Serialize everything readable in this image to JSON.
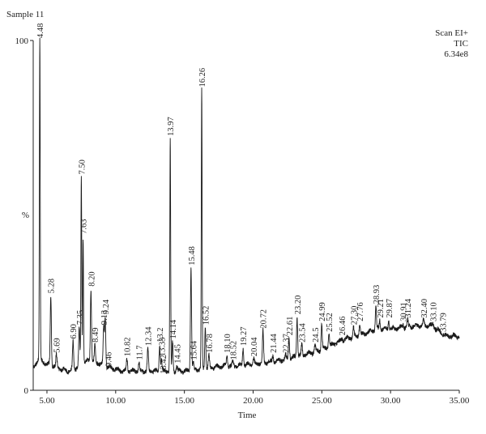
{
  "chart_data": {
    "type": "line",
    "sample_label": "Sample 11",
    "header_lines": [
      "Scan EI+",
      "TIC",
      "6.34e8"
    ],
    "xlabel": "Time",
    "ylabel": "%",
    "xlim": [
      4,
      35
    ],
    "ylim": [
      0,
      100
    ],
    "x_ticks": [
      5,
      10,
      15,
      20,
      25,
      30,
      35
    ],
    "x_tick_labels": [
      "5.00",
      "10.00",
      "15.00",
      "20.00",
      "25.00",
      "30.00",
      "35.00"
    ],
    "y_tick_labels": [
      {
        "value": 0,
        "label": "0"
      },
      {
        "value": 100,
        "label": "100"
      }
    ],
    "ylabel_at": 50,
    "baseline": [
      [
        4.0,
        6
      ],
      [
        4.15,
        7
      ],
      [
        4.25,
        8
      ],
      [
        4.35,
        9
      ],
      [
        4.7,
        8
      ],
      [
        5.0,
        7.5
      ],
      [
        5.5,
        7
      ],
      [
        5.8,
        6.5
      ],
      [
        6.0,
        6
      ],
      [
        6.5,
        5.5
      ],
      [
        7.0,
        6
      ],
      [
        7.5,
        7.5
      ],
      [
        8.0,
        8.5
      ],
      [
        8.5,
        8
      ],
      [
        9.0,
        7.5
      ],
      [
        9.5,
        6.5
      ],
      [
        10.0,
        6
      ],
      [
        10.5,
        5.5
      ],
      [
        11.0,
        5.5
      ],
      [
        12.0,
        5.5
      ],
      [
        13.0,
        5.5
      ],
      [
        14.0,
        5.5
      ],
      [
        15.0,
        5.5
      ],
      [
        16.0,
        6
      ],
      [
        17.0,
        6.5
      ],
      [
        18.0,
        7
      ],
      [
        19.0,
        7
      ],
      [
        20.0,
        7.5
      ],
      [
        21.0,
        8
      ],
      [
        22.0,
        8.5
      ],
      [
        23.0,
        9.5
      ],
      [
        24.0,
        10.5
      ],
      [
        25.0,
        11.5
      ],
      [
        26.0,
        13.5
      ],
      [
        27.0,
        15
      ],
      [
        28.0,
        16
      ],
      [
        29.0,
        17.5
      ],
      [
        30.0,
        17.5
      ],
      [
        31.0,
        18
      ],
      [
        32.0,
        18.5
      ],
      [
        33.0,
        18.5
      ],
      [
        34.0,
        15.5
      ],
      [
        35.0,
        15.5
      ]
    ],
    "peaks": [
      {
        "rt": 4.48,
        "label": "4.48",
        "y": 100
      },
      {
        "rt": 5.28,
        "label": "5.28",
        "y": 27
      },
      {
        "rt": 5.69,
        "label": "5.69",
        "y": 10
      },
      {
        "rt": 6.9,
        "label": "6.90",
        "y": 14
      },
      {
        "rt": 7.35,
        "label": "7.35",
        "y": 18
      },
      {
        "rt": 7.5,
        "label": "7.50",
        "y": 61
      },
      {
        "rt": 7.63,
        "label": "7.63",
        "y": 44
      },
      {
        "rt": 8.2,
        "label": "8.20",
        "y": 29
      },
      {
        "rt": 8.49,
        "label": "8.49",
        "y": 13
      },
      {
        "rt": 9.13,
        "label": "9.13",
        "y": 18
      },
      {
        "rt": 9.24,
        "label": "9.24",
        "y": 21
      },
      {
        "rt": 9.46,
        "label": "9.46",
        "y": 6
      },
      {
        "rt": 10.82,
        "label": "10.82",
        "y": 9
      },
      {
        "rt": 11.7,
        "label": "11.7",
        "y": 8
      },
      {
        "rt": 12.34,
        "label": "12.34",
        "y": 12
      },
      {
        "rt": 13.2,
        "label": "13.2",
        "y": 13
      },
      {
        "rt": 13.33,
        "label": "13.33",
        "y": 9
      },
      {
        "rt": 13.42,
        "label": "13.42",
        "y": 4
      },
      {
        "rt": 13.97,
        "label": "13.97",
        "y": 72
      },
      {
        "rt": 14.14,
        "label": "14.14",
        "y": 14
      },
      {
        "rt": 14.45,
        "label": "14.45",
        "y": 7
      },
      {
        "rt": 15.48,
        "label": "15.48",
        "y": 35
      },
      {
        "rt": 15.64,
        "label": "15.64",
        "y": 8
      },
      {
        "rt": 16.26,
        "label": "16.26",
        "y": 86
      },
      {
        "rt": 16.52,
        "label": "16.52",
        "y": 18
      },
      {
        "rt": 16.78,
        "label": "16.78",
        "y": 10
      },
      {
        "rt": 18.1,
        "label": "18.10",
        "y": 10
      },
      {
        "rt": 18.52,
        "label": "18.52",
        "y": 8
      },
      {
        "rt": 19.27,
        "label": "19.27",
        "y": 12
      },
      {
        "rt": 20.04,
        "label": "20.04",
        "y": 9
      },
      {
        "rt": 20.72,
        "label": "20.72",
        "y": 17
      },
      {
        "rt": 21.44,
        "label": "21.44",
        "y": 10
      },
      {
        "rt": 22.37,
        "label": "22.37",
        "y": 10
      },
      {
        "rt": 22.61,
        "label": "22.61",
        "y": 15
      },
      {
        "rt": 23.2,
        "label": "23.20",
        "y": 21
      },
      {
        "rt": 23.54,
        "label": "23.54",
        "y": 13
      },
      {
        "rt": 24.5,
        "label": "24.5",
        "y": 13
      },
      {
        "rt": 24.99,
        "label": "24.99",
        "y": 19
      },
      {
        "rt": 25.52,
        "label": "25.52",
        "y": 16
      },
      {
        "rt": 26.46,
        "label": "26.46",
        "y": 15
      },
      {
        "rt": 27.3,
        "label": "27.30",
        "y": 18
      },
      {
        "rt": 27.76,
        "label": "27.76",
        "y": 19
      },
      {
        "rt": 28.93,
        "label": "28.93",
        "y": 24
      },
      {
        "rt": 29.21,
        "label": "29.21",
        "y": 20
      },
      {
        "rt": 29.87,
        "label": "29.87",
        "y": 20
      },
      {
        "rt": 30.91,
        "label": "30.91",
        "y": 19
      },
      {
        "rt": 31.24,
        "label": "31.24",
        "y": 20
      },
      {
        "rt": 32.4,
        "label": "32.40",
        "y": 20
      },
      {
        "rt": 33.1,
        "label": "33.10",
        "y": 19
      },
      {
        "rt": 33.79,
        "label": "33.79",
        "y": 16
      }
    ]
  }
}
